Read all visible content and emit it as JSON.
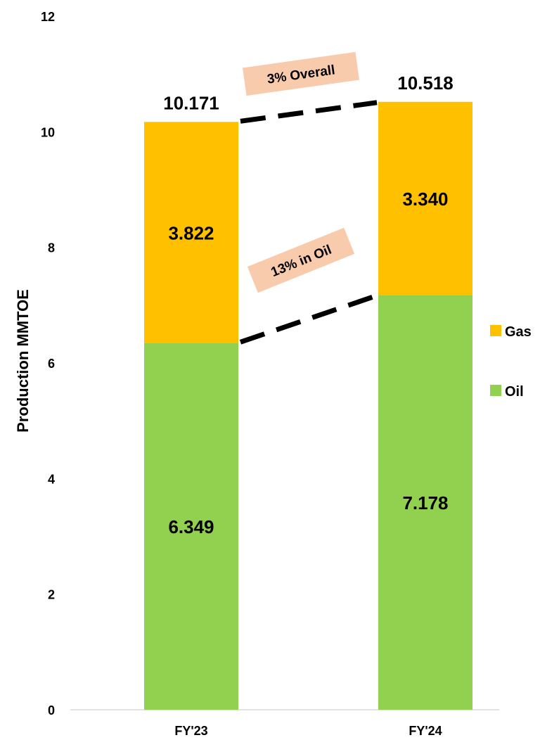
{
  "chart_data": {
    "type": "bar",
    "stacked": true,
    "categories": [
      "FY'23",
      "FY'24"
    ],
    "series": [
      {
        "name": "Oil",
        "values": [
          6.349,
          7.178
        ],
        "color": "#92D050"
      },
      {
        "name": "Gas",
        "values": [
          3.822,
          3.34
        ],
        "color": "#FFC000"
      }
    ],
    "totals": [
      "10.171",
      "10.518"
    ],
    "segment_labels": {
      "Oil": [
        "6.349",
        "7.178"
      ],
      "Gas": [
        "3.822",
        "3.340"
      ]
    },
    "ylabel": "Production MMTOE",
    "xlabel": "",
    "ylim": [
      0,
      12
    ],
    "yticks": [
      0,
      2,
      4,
      6,
      8,
      10,
      12
    ],
    "grid": false,
    "legend_position": "right",
    "annotations": [
      {
        "text": "3%  Overall",
        "connects": "totals",
        "fill": "#F8CBAD"
      },
      {
        "text": "13% in Oil",
        "connects": "Oil",
        "fill": "#F8CBAD"
      }
    ]
  }
}
